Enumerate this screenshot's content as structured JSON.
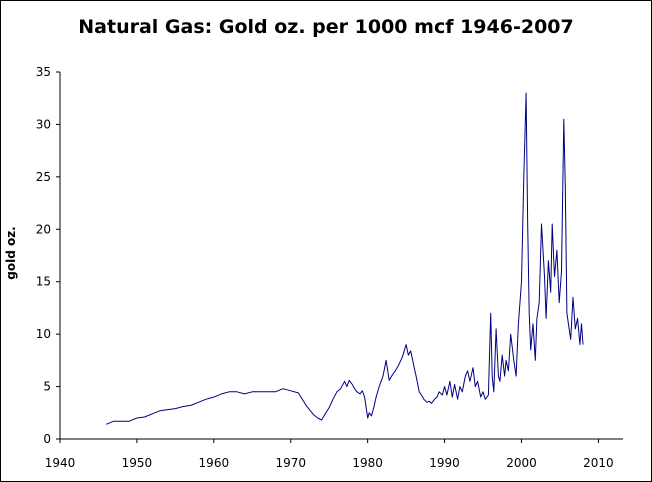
{
  "chart_data": {
    "type": "line",
    "title": "Natural Gas: Gold oz. per 1000 mcf 1946-2007",
    "xlabel": "",
    "ylabel": "gold oz.",
    "xlim": [
      1940,
      2013.2
    ],
    "ylim": [
      0,
      35
    ],
    "xticks": [
      1940,
      1950,
      1960,
      1970,
      1980,
      1990,
      2000,
      2010
    ],
    "yticks": [
      0,
      5,
      10,
      15,
      20,
      25,
      30,
      35
    ],
    "grid": false,
    "line_color": "#000080",
    "series": [
      {
        "name": "",
        "x": [
          1946.0,
          1947.0,
          1948.0,
          1949.0,
          1950.0,
          1951.0,
          1952.0,
          1953.0,
          1954.0,
          1955.0,
          1956.0,
          1957.0,
          1958.0,
          1959.0,
          1960.0,
          1961.0,
          1962.0,
          1963.0,
          1964.0,
          1965.0,
          1966.0,
          1967.0,
          1968.0,
          1969.0,
          1970.0,
          1971.0,
          1972.0,
          1973.0,
          1973.5,
          1974.0,
          1974.5,
          1975.0,
          1975.5,
          1976.0,
          1976.5,
          1977.0,
          1977.3,
          1977.6,
          1978.0,
          1978.3,
          1978.6,
          1979.0,
          1979.3,
          1979.6,
          1980.0,
          1980.2,
          1980.5,
          1980.8,
          1981.1,
          1981.5,
          1982.0,
          1982.4,
          1982.8,
          1983.2,
          1983.6,
          1984.0,
          1984.5,
          1985.0,
          1985.3,
          1985.6,
          1986.0,
          1986.3,
          1986.7,
          1987.0,
          1987.3,
          1987.7,
          1988.0,
          1988.3,
          1988.7,
          1989.0,
          1989.3,
          1989.7,
          1990.0,
          1990.3,
          1990.7,
          1991.0,
          1991.3,
          1991.7,
          1992.0,
          1992.3,
          1992.7,
          1993.0,
          1993.3,
          1993.7,
          1994.0,
          1994.3,
          1994.7,
          1995.0,
          1995.3,
          1995.7,
          1996.0,
          1996.2,
          1996.4,
          1996.7,
          1997.0,
          1997.2,
          1997.5,
          1997.8,
          1998.0,
          1998.3,
          1998.6,
          1999.0,
          1999.3,
          1999.6,
          2000.0,
          2000.3,
          2000.6,
          2000.8,
          2001.0,
          2001.2,
          2001.5,
          2001.8,
          2002.0,
          2002.3,
          2002.6,
          2003.0,
          2003.2,
          2003.5,
          2003.8,
          2004.0,
          2004.3,
          2004.6,
          2004.9,
          2005.2,
          2005.5,
          2005.7,
          2005.9,
          2006.1,
          2006.4,
          2006.7,
          2007.0,
          2007.3,
          2007.6,
          2007.8,
          2008.0
        ],
        "values": [
          1.4,
          1.7,
          1.7,
          1.7,
          2.0,
          2.1,
          2.4,
          2.7,
          2.8,
          2.9,
          3.1,
          3.2,
          3.5,
          3.8,
          4.0,
          4.3,
          4.5,
          4.5,
          4.3,
          4.5,
          4.5,
          4.5,
          4.5,
          4.8,
          4.6,
          4.4,
          3.2,
          2.3,
          2.0,
          1.8,
          2.4,
          3.0,
          3.8,
          4.5,
          4.8,
          5.5,
          5.0,
          5.6,
          5.2,
          4.8,
          4.5,
          4.3,
          4.6,
          4.0,
          2.0,
          2.5,
          2.2,
          3.0,
          4.0,
          5.0,
          6.0,
          7.5,
          5.6,
          6.1,
          6.5,
          7.0,
          7.8,
          9.0,
          8.0,
          8.4,
          7.0,
          6.0,
          4.5,
          4.2,
          3.8,
          3.5,
          3.6,
          3.4,
          3.8,
          4.0,
          4.5,
          4.2,
          5.0,
          4.2,
          5.5,
          4.0,
          5.2,
          3.8,
          5.0,
          4.5,
          6.0,
          6.5,
          5.5,
          6.8,
          5.0,
          5.5,
          4.0,
          4.5,
          3.8,
          4.2,
          12.0,
          6.0,
          4.5,
          10.5,
          6.0,
          5.5,
          8.0,
          6.0,
          7.5,
          6.5,
          10.0,
          7.5,
          6.0,
          11.0,
          15.0,
          25.0,
          33.0,
          21.0,
          12.0,
          8.5,
          11.0,
          7.5,
          11.5,
          13.0,
          20.5,
          15.5,
          11.5,
          17.0,
          14.0,
          20.5,
          15.5,
          18.0,
          13.0,
          16.0,
          30.5,
          24.0,
          12.0,
          11.0,
          9.5,
          13.5,
          10.5,
          11.5,
          9.0,
          11.0,
          9.0
        ]
      }
    ]
  }
}
